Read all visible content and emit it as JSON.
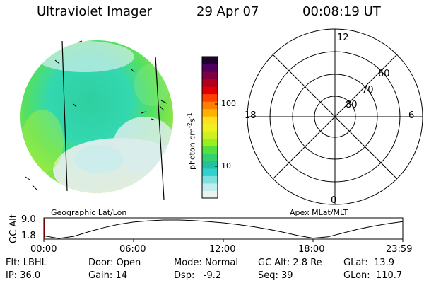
{
  "header": {
    "title": "Ultraviolet Imager",
    "date": "29 Apr 07",
    "time": "00:08:19 UT"
  },
  "colorbar": {
    "label_text": "photon cm",
    "label_sup1": "-2",
    "label_s": "s",
    "label_sup2": "-1",
    "ticks": [
      "100",
      "10"
    ],
    "colors": [
      "#e8f4f4",
      "#c4ecec",
      "#7fe0e0",
      "#33d0d0",
      "#22c0a0",
      "#33d070",
      "#55e040",
      "#99ee22",
      "#ccf020",
      "#eef020",
      "#ffe020",
      "#ffb000",
      "#ff8000",
      "#ff4000",
      "#e00000",
      "#b00020",
      "#800040",
      "#500060",
      "#200030"
    ]
  },
  "polar": {
    "mlt_labels": {
      "top": "12",
      "left": "18",
      "right": "6",
      "bottom": "0"
    },
    "lat_labels": [
      "60",
      "70",
      "80"
    ]
  },
  "map_labels": {
    "left": "Geographic Lat/Lon",
    "right": "Apex MLat/MLT"
  },
  "altitude_plot": {
    "ylabel": "GC Alt",
    "yticks": [
      "9.0",
      "1.8"
    ],
    "xticks": [
      "00:00",
      "06:00",
      "12:00",
      "18:00",
      "23:59"
    ],
    "chart_data": {
      "type": "line",
      "x": [
        0,
        1,
        2,
        3,
        4,
        5,
        6,
        7,
        8,
        9,
        10,
        11,
        12,
        13,
        14,
        15,
        16,
        17,
        18,
        19,
        20,
        21,
        22,
        23,
        24
      ],
      "y": [
        2.8,
        1.8,
        2.6,
        4.4,
        6.0,
        7.3,
        8.2,
        8.7,
        9.0,
        9.0,
        8.8,
        8.4,
        7.9,
        7.2,
        6.4,
        5.4,
        4.2,
        2.9,
        1.9,
        2.4,
        3.9,
        5.4,
        6.6,
        7.6,
        8.4
      ],
      "ylim": [
        1.8,
        9.0
      ],
      "xlim": [
        0,
        24
      ]
    }
  },
  "info": {
    "row1": [
      {
        "label": "Flt:",
        "value": "LBHL"
      },
      {
        "label": "Door:",
        "value": "Open"
      },
      {
        "label": "Mode:",
        "value": "Normal"
      },
      {
        "label": "GC Alt:",
        "value": "2.8 Re"
      },
      {
        "label": "GLat:",
        "value": "13.9"
      }
    ],
    "row2": [
      {
        "label": "IP:",
        "value": "36.0"
      },
      {
        "label": "Gain:",
        "value": "14"
      },
      {
        "label": "Dsp:",
        "value": "-9.2"
      },
      {
        "label": "Seq:",
        "value": "39"
      },
      {
        "label": "GLon:",
        "value": "110.7"
      }
    ]
  }
}
